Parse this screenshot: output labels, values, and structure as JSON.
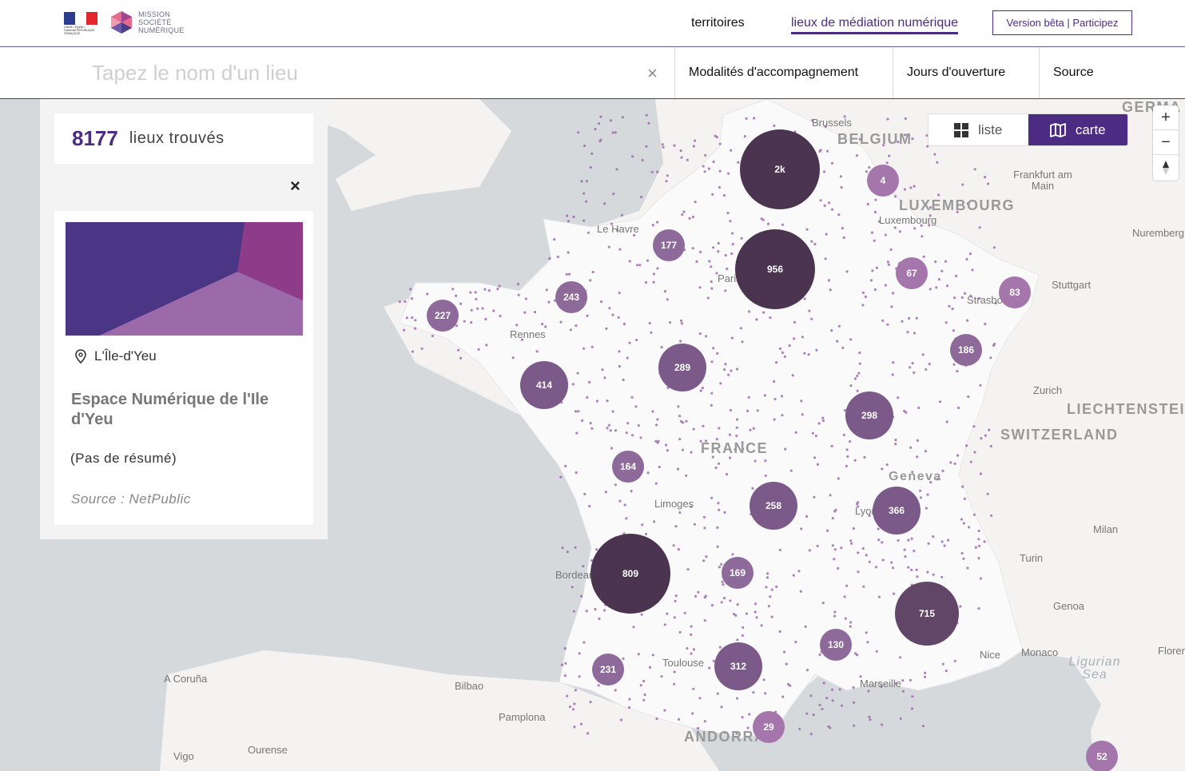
{
  "header": {
    "logo_rf_text": "Liberté • Égalité • Fraternité RÉPUBLIQUE FRANÇAISE",
    "logo_mission_lines": [
      "MISSION",
      "SOCIÉTÉ",
      "NUMÉRIQUE"
    ],
    "nav": [
      {
        "label": "territoires"
      },
      {
        "label": "lieux de médiation numérique"
      }
    ],
    "beta_label": "Version bêta | Participez"
  },
  "filters": {
    "search_placeholder": "Tapez le nom d'un lieu",
    "search_value": "",
    "clear_icon": "×",
    "items": [
      "Modalités d'accompagnement",
      "Jours d'ouverture",
      "Source"
    ]
  },
  "panel": {
    "count": "8177",
    "count_label": "lieux trouvés",
    "close_icon": "×",
    "card": {
      "place": "L'Île-d'Yeu",
      "title": "Espace Numérique de l'Ile d'Yeu",
      "summary": "(Pas de résumé)",
      "source": "Source : NetPublic"
    }
  },
  "view_toggle": {
    "list_label": "liste",
    "map_label": "carte",
    "active": "carte"
  },
  "zoom": {
    "in": "+",
    "out": "−"
  },
  "colors": {
    "brand": "#4b2c82",
    "cluster_dark": "#4a3450",
    "cluster_mid": "#7b5a8a",
    "cluster_light": "#a576ab",
    "dots": "#a06cb0"
  },
  "map_labels": {
    "countries": [
      "BELGIUM",
      "LUXEMBOURG",
      "FRANCE",
      "SWITZERLAND",
      "LIECHTENSTEIN",
      "ANDORRA",
      "GERMA"
    ],
    "cities": [
      "Brussels",
      "Frankfurt am Main",
      "Luxembourg",
      "Nuremberg",
      "Stuttgart",
      "Strasbourg",
      "Zurich",
      "Geneva",
      "Milan",
      "Turin",
      "Genoa",
      "Monaco",
      "Nice",
      "Marseille",
      "Toulouse",
      "Bordeaux",
      "Limoges",
      "Le Havre",
      "Paris",
      "Rennes",
      "Lyon",
      "Bilbao",
      "Pamplona",
      "A Coruña",
      "Vigo",
      "Ourense",
      "Florence"
    ],
    "seas": [
      "Ligurian Sea"
    ]
  },
  "clusters": [
    {
      "label": "2k",
      "size": "xl"
    },
    {
      "label": "956",
      "size": "xl"
    },
    {
      "label": "809",
      "size": "xl"
    },
    {
      "label": "715",
      "size": "lg"
    },
    {
      "label": "414",
      "size": "md"
    },
    {
      "label": "366",
      "size": "md"
    },
    {
      "label": "312",
      "size": "md"
    },
    {
      "label": "298",
      "size": "md"
    },
    {
      "label": "289",
      "size": "md"
    },
    {
      "label": "258",
      "size": "md"
    },
    {
      "label": "243",
      "size": "sm"
    },
    {
      "label": "231",
      "size": "sm"
    },
    {
      "label": "227",
      "size": "sm"
    },
    {
      "label": "186",
      "size": "sm"
    },
    {
      "label": "177",
      "size": "sm"
    },
    {
      "label": "169",
      "size": "sm"
    },
    {
      "label": "164",
      "size": "sm"
    },
    {
      "label": "130",
      "size": "sm"
    },
    {
      "label": "83",
      "size": "sm"
    },
    {
      "label": "67",
      "size": "sm"
    },
    {
      "label": "52",
      "size": "sm"
    },
    {
      "label": "29",
      "size": "sm"
    },
    {
      "label": "4",
      "size": "sm"
    }
  ]
}
